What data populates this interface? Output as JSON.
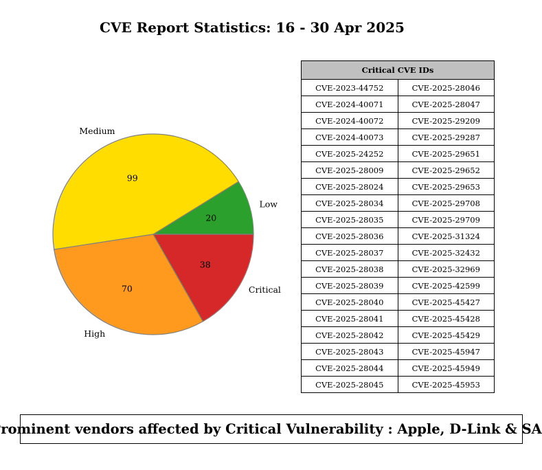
{
  "title": "CVE Report Statistics: 16 - 30 Apr 2025",
  "chart_data": {
    "type": "pie",
    "slices": [
      {
        "label": "Low",
        "value": 20,
        "color": "#2ca02c"
      },
      {
        "label": "Medium",
        "value": 99,
        "color": "#ffdd00"
      },
      {
        "label": "High",
        "value": 70,
        "color": "#ff9a1f"
      },
      {
        "label": "Critical",
        "value": 38,
        "color": "#d62828"
      }
    ],
    "edge_color": "#808080"
  },
  "table": {
    "header": "Critical CVE IDs",
    "header_bg": "#c0c0c0",
    "rows": [
      [
        "CVE-2023-44752",
        "CVE-2025-28046"
      ],
      [
        "CVE-2024-40071",
        "CVE-2025-28047"
      ],
      [
        "CVE-2024-40072",
        "CVE-2025-29209"
      ],
      [
        "CVE-2024-40073",
        "CVE-2025-29287"
      ],
      [
        "CVE-2025-24252",
        "CVE-2025-29651"
      ],
      [
        "CVE-2025-28009",
        "CVE-2025-29652"
      ],
      [
        "CVE-2025-28024",
        "CVE-2025-29653"
      ],
      [
        "CVE-2025-28034",
        "CVE-2025-29708"
      ],
      [
        "CVE-2025-28035",
        "CVE-2025-29709"
      ],
      [
        "CVE-2025-28036",
        "CVE-2025-31324"
      ],
      [
        "CVE-2025-28037",
        "CVE-2025-32432"
      ],
      [
        "CVE-2025-28038",
        "CVE-2025-32969"
      ],
      [
        "CVE-2025-28039",
        "CVE-2025-42599"
      ],
      [
        "CVE-2025-28040",
        "CVE-2025-45427"
      ],
      [
        "CVE-2025-28041",
        "CVE-2025-45428"
      ],
      [
        "CVE-2025-28042",
        "CVE-2025-45429"
      ],
      [
        "CVE-2025-28043",
        "CVE-2025-45947"
      ],
      [
        "CVE-2025-28044",
        "CVE-2025-45949"
      ],
      [
        "CVE-2025-28045",
        "CVE-2025-45953"
      ]
    ]
  },
  "footer": "Prominent vendors affected by Critical Vulnerability : Apple, D-Link & SAP"
}
